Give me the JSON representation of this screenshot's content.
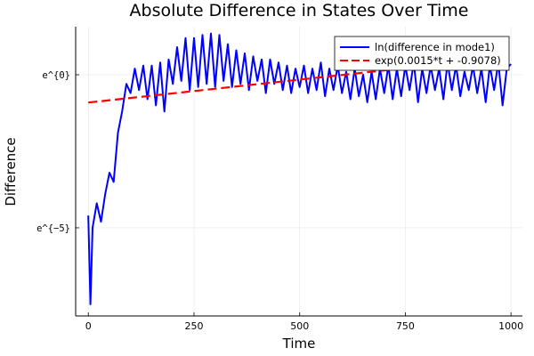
{
  "chart_data": {
    "type": "line",
    "title": "Absolute Difference in States Over Time",
    "xlabel": "Time",
    "ylabel": "Difference",
    "xlim": [
      -30,
      1027
    ],
    "ylim_ln": [
      -7.88,
      1.57
    ],
    "xticks": [
      0,
      250,
      500,
      750,
      1000
    ],
    "xtick_labels": [
      "0",
      "250",
      "500",
      "750",
      "1000"
    ],
    "yticks_ln": [
      0,
      -5
    ],
    "ytick_labels": [
      "e^{0}",
      "e^{−5}"
    ],
    "grid": true,
    "legend_position": "top-right",
    "series": [
      {
        "name": "ln(difference in mode1)",
        "color": "#0000ff",
        "style": "solid",
        "x_start": 0,
        "x_step": 10,
        "ln_values": [
          -4.6,
          -5.0,
          -4.2,
          -4.8,
          -3.9,
          -3.2,
          -3.5,
          -1.9,
          -1.2,
          -0.3,
          -0.6,
          0.2,
          -0.5,
          0.3,
          -0.8,
          0.3,
          -1.0,
          0.4,
          -1.2,
          0.5,
          -0.3,
          0.9,
          -0.2,
          1.2,
          -0.5,
          1.2,
          -0.4,
          1.3,
          -0.3,
          1.35,
          -0.4,
          1.3,
          -0.2,
          1.0,
          -0.4,
          0.8,
          -0.3,
          0.7,
          -0.5,
          0.6,
          -0.2,
          0.5,
          -0.6,
          0.5,
          -0.3,
          0.4,
          -0.5,
          0.3,
          -0.6,
          0.2,
          -0.4,
          0.3,
          -0.6,
          0.2,
          -0.5,
          0.4,
          -0.7,
          0.2,
          -0.5,
          0.3,
          -0.6,
          0.1,
          -0.8,
          0.2,
          -0.7,
          0.0,
          -0.9,
          0.1,
          -0.8,
          0.2,
          -0.6,
          0.3,
          -0.8,
          0.2,
          -0.7,
          0.3,
          -0.5,
          0.4,
          -0.9,
          0.2,
          -0.6,
          0.3,
          -0.5,
          0.2,
          -0.8,
          0.4,
          -0.5,
          0.3,
          -0.7,
          0.1,
          -0.5,
          0.3,
          -0.6,
          0.2,
          -0.9,
          0.3,
          -0.5,
          0.4,
          -1.0,
          0.2,
          0.35
        ],
        "dip": {
          "x": 5,
          "ln_value": -7.5
        }
      },
      {
        "name": "exp(0.0015*t + -0.9078)",
        "color": "#ff0000",
        "style": "dashed",
        "slope": 0.0015,
        "intercept": -0.9078
      }
    ]
  }
}
